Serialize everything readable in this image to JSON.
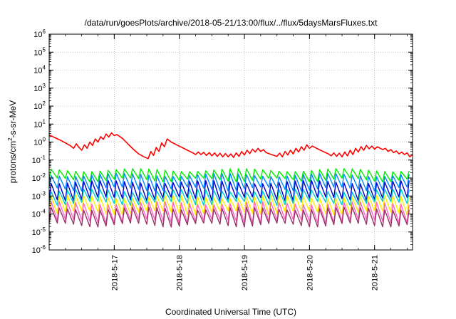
{
  "chart_data": {
    "type": "line",
    "title": "/data/run/goesPlots/archive/2018-05-21/13:00/flux/../flux/5daysMarsFluxes.txt",
    "xlabel": "Coordinated Universal Time (UTC)",
    "ylabel": "protons/cm²-s-sr-MeV",
    "ylabel_parts": {
      "pre": "protons/cm",
      "sup": "2",
      "post": "-s-sr-MeV"
    },
    "xlim": [
      "2018-05-16T00:00",
      "2018-05-21T14:00"
    ],
    "ylim": [
      1e-06,
      1000000.0
    ],
    "yscale": "log",
    "grid": true,
    "x_ticks": [
      {
        "date": "2018-05-17T00:00",
        "label": "2018-5-17"
      },
      {
        "date": "2018-05-18T00:00",
        "label": "2018-5-18"
      },
      {
        "date": "2018-05-19T00:00",
        "label": "2018-5-19"
      },
      {
        "date": "2018-05-20T00:00",
        "label": "2018-5-20"
      },
      {
        "date": "2018-05-21T00:00",
        "label": "2018-5-21"
      }
    ],
    "y_ticks": [
      {
        "value": 1e-06,
        "base": "10",
        "exp": "-6"
      },
      {
        "value": 1e-05,
        "base": "10",
        "exp": "-5"
      },
      {
        "value": 0.0001,
        "base": "10",
        "exp": "-4"
      },
      {
        "value": 0.001,
        "base": "10",
        "exp": "-3"
      },
      {
        "value": 0.01,
        "base": "10",
        "exp": "-2"
      },
      {
        "value": 0.1,
        "base": "10",
        "exp": "-1"
      },
      {
        "value": 1,
        "base": "10",
        "exp": "0"
      },
      {
        "value": 10,
        "base": "10",
        "exp": "1"
      },
      {
        "value": 100,
        "base": "10",
        "exp": "2"
      },
      {
        "value": 1000,
        "base": "10",
        "exp": "3"
      },
      {
        "value": 10000,
        "base": "10",
        "exp": "4"
      },
      {
        "value": 100000,
        "base": "10",
        "exp": "5"
      },
      {
        "value": 1000000,
        "base": "10",
        "exp": "6"
      }
    ],
    "series": [
      {
        "color": "#ff0000",
        "points": [
          [
            "2018-05-16T00:00",
            2.5
          ],
          [
            "2018-05-16T02:00",
            1.8
          ],
          [
            "2018-05-16T04:00",
            1.3
          ],
          [
            "2018-05-16T06:00",
            0.9
          ],
          [
            "2018-05-16T08:00",
            0.6
          ],
          [
            "2018-05-16T09:00",
            0.45
          ],
          [
            "2018-05-16T10:00",
            0.8
          ],
          [
            "2018-05-16T11:00",
            0.5
          ],
          [
            "2018-05-16T12:00",
            0.35
          ],
          [
            "2018-05-16T13:00",
            0.7
          ],
          [
            "2018-05-16T14:00",
            0.45
          ],
          [
            "2018-05-16T15:00",
            1.0
          ],
          [
            "2018-05-16T16:00",
            0.65
          ],
          [
            "2018-05-16T17:00",
            1.5
          ],
          [
            "2018-05-16T18:00",
            1.0
          ],
          [
            "2018-05-16T19:00",
            2.0
          ],
          [
            "2018-05-16T20:00",
            1.4
          ],
          [
            "2018-05-16T21:00",
            2.8
          ],
          [
            "2018-05-16T22:00",
            1.9
          ],
          [
            "2018-05-16T23:00",
            3.2
          ],
          [
            "2018-05-17T00:00",
            2.3
          ],
          [
            "2018-05-17T01:00",
            2.6
          ],
          [
            "2018-05-17T03:00",
            1.6
          ],
          [
            "2018-05-17T05:00",
            0.8
          ],
          [
            "2018-05-17T07:00",
            0.4
          ],
          [
            "2018-05-17T09:00",
            0.22
          ],
          [
            "2018-05-17T11:00",
            0.15
          ],
          [
            "2018-05-17T12:30",
            0.12
          ],
          [
            "2018-05-17T13:30",
            0.3
          ],
          [
            "2018-05-17T14:30",
            0.18
          ],
          [
            "2018-05-17T15:30",
            0.5
          ],
          [
            "2018-05-17T16:30",
            0.3
          ],
          [
            "2018-05-17T17:30",
            0.9
          ],
          [
            "2018-05-17T18:30",
            0.55
          ],
          [
            "2018-05-17T19:30",
            1.5
          ],
          [
            "2018-05-17T21:00",
            1.0
          ],
          [
            "2018-05-17T23:00",
            0.7
          ],
          [
            "2018-05-18T01:00",
            0.5
          ],
          [
            "2018-05-18T03:00",
            0.35
          ],
          [
            "2018-05-18T05:00",
            0.25
          ],
          [
            "2018-05-18T06:00",
            0.2
          ],
          [
            "2018-05-18T07:00",
            0.28
          ],
          [
            "2018-05-18T08:00",
            0.2
          ],
          [
            "2018-05-18T09:00",
            0.27
          ],
          [
            "2018-05-18T10:00",
            0.18
          ],
          [
            "2018-05-18T11:00",
            0.26
          ],
          [
            "2018-05-18T12:00",
            0.17
          ],
          [
            "2018-05-18T13:00",
            0.25
          ],
          [
            "2018-05-18T14:00",
            0.16
          ],
          [
            "2018-05-18T15:00",
            0.24
          ],
          [
            "2018-05-18T16:00",
            0.15
          ],
          [
            "2018-05-18T17:00",
            0.23
          ],
          [
            "2018-05-18T18:00",
            0.15
          ],
          [
            "2018-05-18T19:00",
            0.22
          ],
          [
            "2018-05-18T20:00",
            0.14
          ],
          [
            "2018-05-18T21:00",
            0.25
          ],
          [
            "2018-05-18T22:00",
            0.16
          ],
          [
            "2018-05-18T23:00",
            0.3
          ],
          [
            "2018-05-19T00:00",
            0.19
          ],
          [
            "2018-05-19T01:00",
            0.35
          ],
          [
            "2018-05-19T02:00",
            0.23
          ],
          [
            "2018-05-19T03:00",
            0.4
          ],
          [
            "2018-05-19T04:00",
            0.28
          ],
          [
            "2018-05-19T05:00",
            0.45
          ],
          [
            "2018-05-19T06:00",
            0.3
          ],
          [
            "2018-05-19T07:00",
            0.38
          ],
          [
            "2018-05-19T08:00",
            0.26
          ],
          [
            "2018-05-19T10:00",
            0.2
          ],
          [
            "2018-05-19T12:00",
            0.16
          ],
          [
            "2018-05-19T13:00",
            0.24
          ],
          [
            "2018-05-19T14:00",
            0.15
          ],
          [
            "2018-05-19T15:00",
            0.3
          ],
          [
            "2018-05-19T16:00",
            0.19
          ],
          [
            "2018-05-19T17:00",
            0.35
          ],
          [
            "2018-05-19T18:00",
            0.22
          ],
          [
            "2018-05-19T19:00",
            0.45
          ],
          [
            "2018-05-19T20:00",
            0.28
          ],
          [
            "2018-05-19T21:00",
            0.55
          ],
          [
            "2018-05-19T22:00",
            0.35
          ],
          [
            "2018-05-19T23:00",
            0.7
          ],
          [
            "2018-05-20T00:00",
            0.45
          ],
          [
            "2018-05-20T01:00",
            0.6
          ],
          [
            "2018-05-20T03:00",
            0.42
          ],
          [
            "2018-05-20T05:00",
            0.3
          ],
          [
            "2018-05-20T07:00",
            0.22
          ],
          [
            "2018-05-20T08:00",
            0.17
          ],
          [
            "2018-05-20T09:00",
            0.25
          ],
          [
            "2018-05-20T10:00",
            0.16
          ],
          [
            "2018-05-20T11:00",
            0.24
          ],
          [
            "2018-05-20T12:00",
            0.15
          ],
          [
            "2018-05-20T13:00",
            0.28
          ],
          [
            "2018-05-20T14:00",
            0.17
          ],
          [
            "2018-05-20T15:00",
            0.35
          ],
          [
            "2018-05-20T16:00",
            0.2
          ],
          [
            "2018-05-20T17:00",
            0.45
          ],
          [
            "2018-05-20T18:00",
            0.28
          ],
          [
            "2018-05-20T19:00",
            0.55
          ],
          [
            "2018-05-20T20:00",
            0.35
          ],
          [
            "2018-05-20T21:00",
            0.65
          ],
          [
            "2018-05-20T22:00",
            0.42
          ],
          [
            "2018-05-20T23:00",
            0.6
          ],
          [
            "2018-05-21T00:00",
            0.4
          ],
          [
            "2018-05-21T01:00",
            0.55
          ],
          [
            "2018-05-21T03:00",
            0.38
          ],
          [
            "2018-05-21T04:00",
            0.45
          ],
          [
            "2018-05-21T05:00",
            0.3
          ],
          [
            "2018-05-21T06:00",
            0.38
          ],
          [
            "2018-05-21T07:00",
            0.26
          ],
          [
            "2018-05-21T08:00",
            0.32
          ],
          [
            "2018-05-21T09:00",
            0.22
          ],
          [
            "2018-05-21T10:00",
            0.28
          ],
          [
            "2018-05-21T11:00",
            0.2
          ],
          [
            "2018-05-21T12:00",
            0.25
          ],
          [
            "2018-05-21T13:00",
            0.15
          ],
          [
            "2018-05-21T14:00",
            0.2
          ]
        ]
      },
      {
        "color": "#00ee00",
        "pattern": {
          "start": "2018-05-16T00:00",
          "end": "2018-05-21T14:00",
          "period_hours": 3,
          "peak": 0.028,
          "trough": 0.008
        }
      },
      {
        "color": "#0088ff",
        "pattern": {
          "start": "2018-05-16T00:00",
          "end": "2018-05-21T14:00",
          "period_hours": 3,
          "peak": 0.015,
          "trough": 0.0025
        }
      },
      {
        "color": "#0000cc",
        "pattern": {
          "start": "2018-05-16T00:00",
          "end": "2018-05-21T14:00",
          "period_hours": 3,
          "peak": 0.006,
          "trough": 0.0007
        }
      },
      {
        "color": "#00cccc",
        "pattern": {
          "start": "2018-05-16T00:00",
          "end": "2018-05-21T14:00",
          "period_hours": 3,
          "peak": 0.002,
          "trough": 0.0004
        }
      },
      {
        "color": "#ffee00",
        "pattern": {
          "start": "2018-05-16T00:00",
          "end": "2018-05-21T14:00",
          "period_hours": 3,
          "peak": 0.0009,
          "trough": 0.00012
        }
      },
      {
        "color": "#ff66cc",
        "pattern": {
          "start": "2018-05-16T00:00",
          "end": "2018-05-21T14:00",
          "period_hours": 3,
          "peak": 0.0004,
          "trough": 4e-05
        }
      },
      {
        "color": "#993366",
        "pattern": {
          "start": "2018-05-16T00:00",
          "end": "2018-05-21T14:00",
          "period_hours": 3,
          "peak": 0.0002,
          "trough": 2.5e-05
        }
      }
    ]
  }
}
